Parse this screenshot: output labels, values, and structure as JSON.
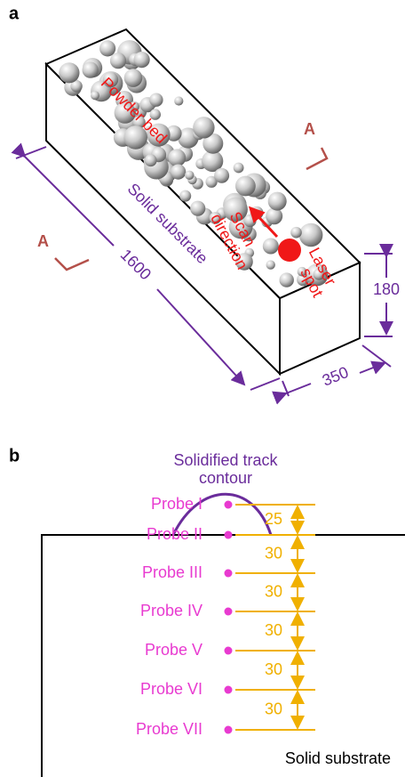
{
  "panel_a": {
    "label": "a",
    "powder_bed": "Powder bed",
    "section_marks": [
      "A",
      "A"
    ],
    "substrate": "Solid substrate",
    "length": "1600",
    "scan_direction": [
      "Scan",
      "direction"
    ],
    "laser_spot": [
      "Laser",
      "spot"
    ],
    "height": "180",
    "width": "350"
  },
  "panel_b": {
    "label": "b",
    "track_contour": [
      "Solidified track",
      "contour"
    ],
    "probes": [
      "Probe I",
      "Probe II",
      "Probe III",
      "Probe IV",
      "Probe V",
      "Probe VI",
      "Probe VII"
    ],
    "spacings": [
      "25",
      "30",
      "30",
      "30",
      "30",
      "30"
    ],
    "substrate": "Solid substrate"
  }
}
